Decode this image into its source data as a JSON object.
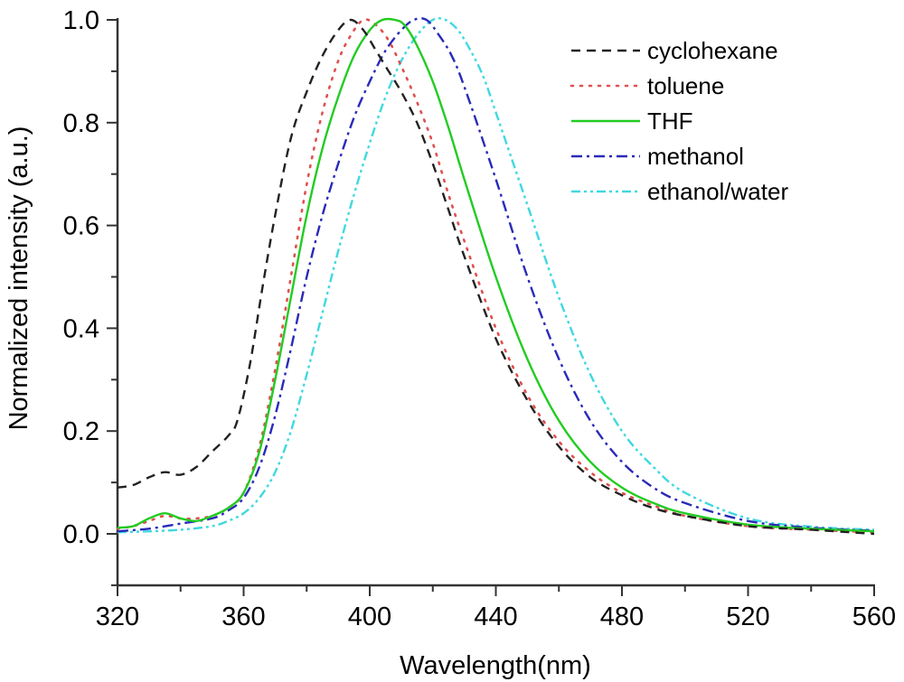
{
  "chart_data": {
    "type": "line",
    "title": "",
    "xlabel": "Wavelength(nm)",
    "ylabel": "Normalized intensity (a.u.)",
    "xlim": [
      320,
      560
    ],
    "ylim": [
      -0.1,
      1.0
    ],
    "xticks": [
      320,
      360,
      400,
      440,
      480,
      520,
      560
    ],
    "xtick_labels": [
      "320",
      "360",
      "400",
      "440",
      "480",
      "520",
      "560"
    ],
    "yticks": [
      0.0,
      0.2,
      0.4,
      0.6,
      0.8,
      1.0
    ],
    "ytick_labels": [
      "0.0",
      "0.2",
      "0.4",
      "0.6",
      "0.8",
      "1.0"
    ],
    "grid": false,
    "legend_position": "top-right",
    "series": [
      {
        "name": "cyclohexane",
        "color": "#222222",
        "style": "dashed",
        "x": [
          320,
          325,
          330,
          335,
          340,
          345,
          350,
          355,
          358,
          362,
          366,
          370,
          375,
          380,
          385,
          390,
          394,
          398,
          402,
          406,
          410,
          415,
          420,
          425,
          430,
          440,
          450,
          460,
          470,
          480,
          490,
          500,
          520,
          540,
          560
        ],
        "y": [
          0.09,
          0.095,
          0.11,
          0.12,
          0.115,
          0.13,
          0.16,
          0.19,
          0.22,
          0.33,
          0.48,
          0.62,
          0.77,
          0.86,
          0.93,
          0.98,
          1.0,
          0.98,
          0.94,
          0.9,
          0.86,
          0.8,
          0.72,
          0.63,
          0.54,
          0.38,
          0.26,
          0.17,
          0.11,
          0.075,
          0.05,
          0.035,
          0.015,
          0.008,
          0.0
        ]
      },
      {
        "name": "toluene",
        "color": "#e05050",
        "style": "dotted",
        "x": [
          320,
          325,
          330,
          335,
          340,
          345,
          350,
          355,
          360,
          365,
          370,
          375,
          380,
          385,
          390,
          394,
          398,
          402,
          406,
          410,
          415,
          420,
          425,
          430,
          440,
          450,
          460,
          470,
          480,
          490,
          500,
          520,
          540,
          560
        ],
        "y": [
          0.01,
          0.015,
          0.025,
          0.035,
          0.03,
          0.03,
          0.035,
          0.05,
          0.08,
          0.17,
          0.32,
          0.5,
          0.68,
          0.82,
          0.92,
          0.97,
          1.0,
          0.99,
          0.96,
          0.91,
          0.84,
          0.76,
          0.66,
          0.57,
          0.4,
          0.27,
          0.18,
          0.12,
          0.08,
          0.055,
          0.035,
          0.015,
          0.008,
          0.003
        ]
      },
      {
        "name": "THF",
        "color": "#22cc22",
        "style": "solid",
        "x": [
          320,
          325,
          330,
          335,
          340,
          345,
          350,
          355,
          360,
          365,
          370,
          375,
          380,
          385,
          390,
          395,
          400,
          404,
          408,
          411,
          415,
          420,
          425,
          430,
          440,
          450,
          460,
          470,
          480,
          490,
          500,
          520,
          540,
          560
        ],
        "y": [
          0.012,
          0.015,
          0.03,
          0.04,
          0.03,
          0.025,
          0.035,
          0.05,
          0.08,
          0.16,
          0.3,
          0.46,
          0.62,
          0.75,
          0.85,
          0.93,
          0.98,
          1.0,
          1.0,
          0.99,
          0.95,
          0.88,
          0.79,
          0.69,
          0.5,
          0.34,
          0.22,
          0.14,
          0.09,
          0.06,
          0.04,
          0.018,
          0.01,
          0.005
        ]
      },
      {
        "name": "methanol",
        "color": "#2a2ab8",
        "style": "dash-dot",
        "x": [
          320,
          330,
          340,
          350,
          355,
          360,
          365,
          370,
          375,
          380,
          385,
          390,
          395,
          400,
          405,
          410,
          414,
          418,
          422,
          426,
          430,
          440,
          450,
          460,
          470,
          480,
          490,
          500,
          520,
          540,
          560
        ],
        "y": [
          0.005,
          0.01,
          0.02,
          0.03,
          0.045,
          0.07,
          0.13,
          0.23,
          0.36,
          0.5,
          0.62,
          0.72,
          0.81,
          0.88,
          0.94,
          0.98,
          1.0,
          1.0,
          0.97,
          0.93,
          0.87,
          0.69,
          0.5,
          0.34,
          0.22,
          0.14,
          0.09,
          0.06,
          0.025,
          0.012,
          0.006
        ]
      },
      {
        "name": "ethanol/water",
        "color": "#40d8e0",
        "style": "dash-dot-dot",
        "x": [
          320,
          330,
          340,
          350,
          355,
          360,
          365,
          370,
          375,
          380,
          385,
          390,
          395,
          400,
          405,
          410,
          415,
          420,
          424,
          428,
          432,
          436,
          440,
          450,
          460,
          470,
          480,
          490,
          500,
          520,
          540,
          560
        ],
        "y": [
          0.003,
          0.005,
          0.008,
          0.015,
          0.025,
          0.04,
          0.07,
          0.12,
          0.2,
          0.31,
          0.43,
          0.55,
          0.66,
          0.76,
          0.85,
          0.92,
          0.97,
          1.0,
          1.0,
          0.98,
          0.94,
          0.89,
          0.82,
          0.64,
          0.46,
          0.31,
          0.2,
          0.13,
          0.08,
          0.03,
          0.014,
          0.008
        ]
      }
    ]
  }
}
